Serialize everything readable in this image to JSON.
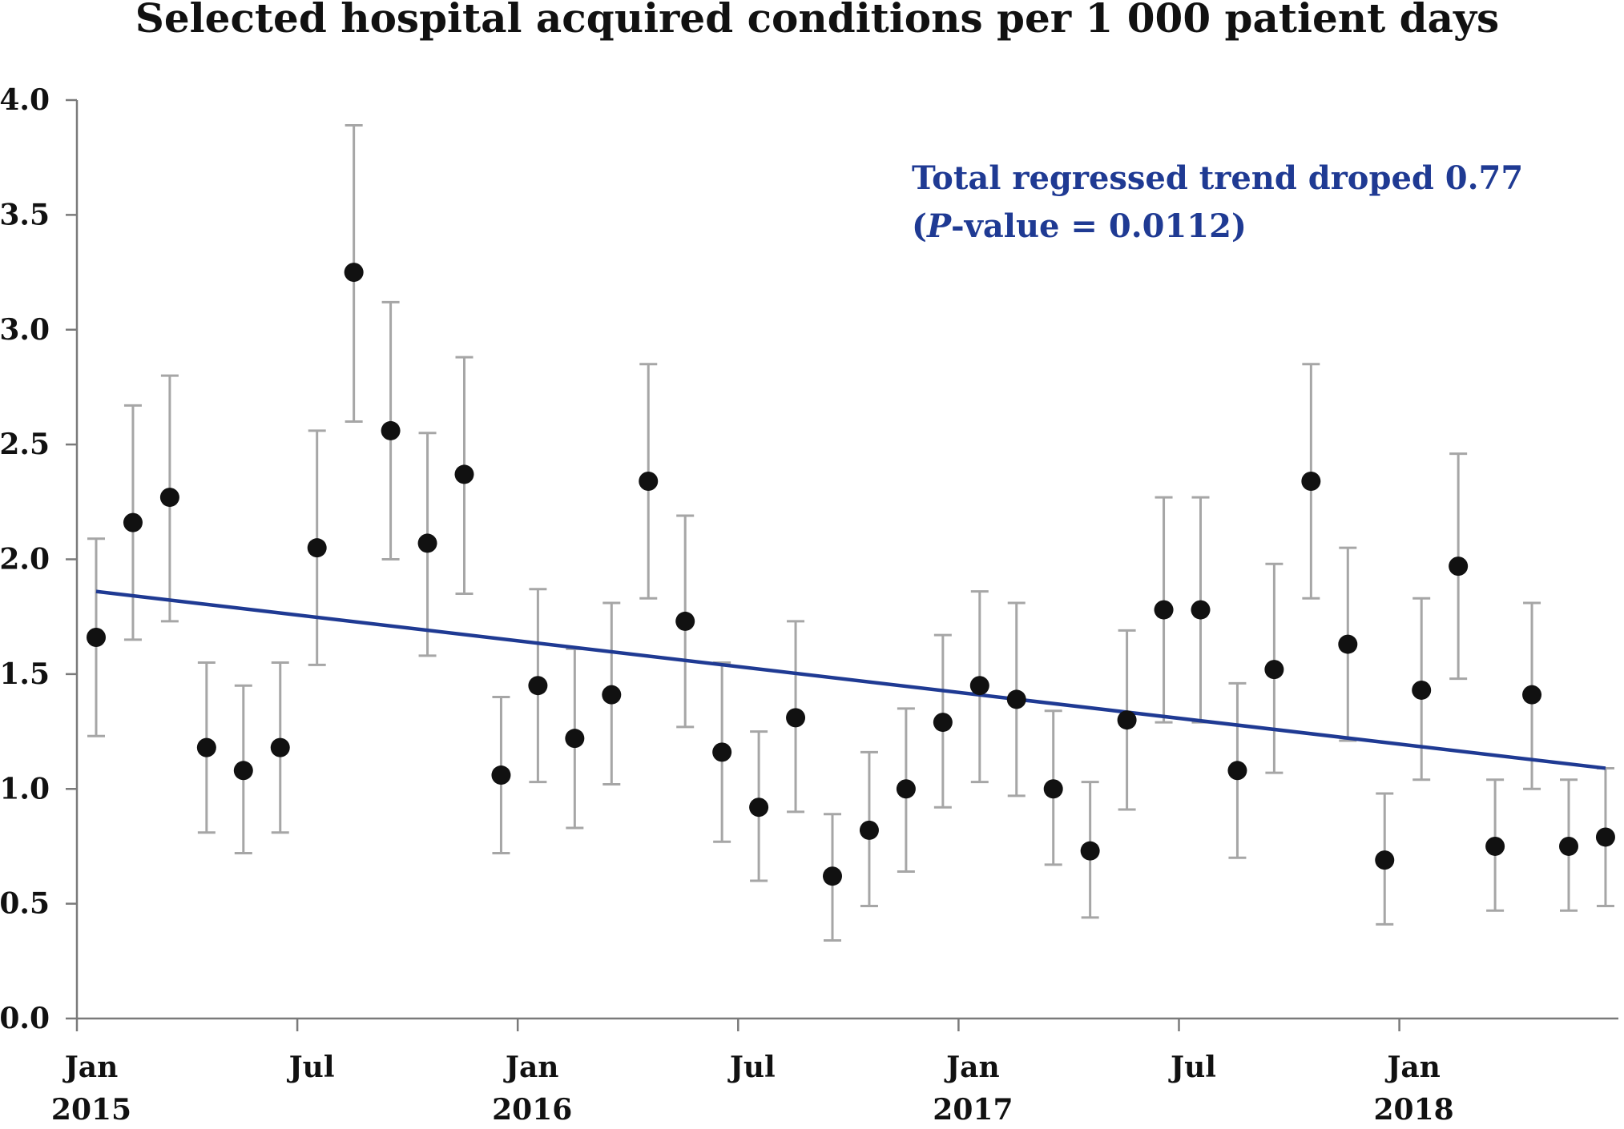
{
  "chart_data": {
    "type": "scatter",
    "title": "Selected hospital acquired conditions per 1 000 patient days",
    "xlabel": "",
    "ylabel": "",
    "ylim": [
      0.0,
      4.0
    ],
    "y_ticks": [
      "0.0",
      "0.5",
      "1.0",
      "1.5",
      "2.0",
      "2.5",
      "3.0",
      "3.5",
      "4.0"
    ],
    "x_ticks": [
      {
        "date": "2015-01",
        "month": "Jan",
        "year": "2015"
      },
      {
        "date": "2015-07",
        "month": "Jul",
        "year": ""
      },
      {
        "date": "2016-01",
        "month": "Jan",
        "year": "2016"
      },
      {
        "date": "2016-07",
        "month": "Jul",
        "year": ""
      },
      {
        "date": "2017-01",
        "month": "Jan",
        "year": "2017"
      },
      {
        "date": "2017-07",
        "month": "Jul",
        "year": ""
      },
      {
        "date": "2018-01",
        "month": "Jan",
        "year": "2018"
      }
    ],
    "x": [
      "2015-01",
      "2015-02",
      "2015-03",
      "2015-04",
      "2015-05",
      "2015-06",
      "2015-07",
      "2015-08",
      "2015-09",
      "2015-10",
      "2015-11",
      "2015-12",
      "2016-01",
      "2016-02",
      "2016-03",
      "2016-04",
      "2016-05",
      "2016-06",
      "2016-07",
      "2016-08",
      "2016-09",
      "2016-10",
      "2016-11",
      "2016-12",
      "2017-01",
      "2017-02",
      "2017-03",
      "2017-04",
      "2017-05",
      "2017-06",
      "2017-07",
      "2017-08",
      "2017-09",
      "2017-10",
      "2017-11",
      "2017-12",
      "2018-01",
      "2018-02",
      "2018-03",
      "2018-04",
      "2018-05",
      "2018-06"
    ],
    "values": [
      1.66,
      2.16,
      2.27,
      1.18,
      1.08,
      1.18,
      2.05,
      3.25,
      2.56,
      2.07,
      2.37,
      1.06,
      1.45,
      1.22,
      1.41,
      2.34,
      1.73,
      1.16,
      0.92,
      1.31,
      0.62,
      0.82,
      1.0,
      1.29,
      1.45,
      1.39,
      1.0,
      0.73,
      1.3,
      1.78,
      1.78,
      1.08,
      1.52,
      2.34,
      1.63,
      0.69,
      1.43,
      1.97,
      0.75,
      1.41,
      0.75,
      0.79
    ],
    "error_lower": [
      1.23,
      1.65,
      1.73,
      0.81,
      0.72,
      0.81,
      1.54,
      2.6,
      2.0,
      1.58,
      1.85,
      0.72,
      1.03,
      0.83,
      1.02,
      1.83,
      1.27,
      0.77,
      0.6,
      0.9,
      0.34,
      0.49,
      0.64,
      0.92,
      1.03,
      0.97,
      0.67,
      0.44,
      0.91,
      1.29,
      1.29,
      0.7,
      1.07,
      1.83,
      1.21,
      0.41,
      1.04,
      1.48,
      0.47,
      1.0,
      0.47,
      0.49
    ],
    "error_upper": [
      2.09,
      2.67,
      2.8,
      1.55,
      1.45,
      1.55,
      2.56,
      3.89,
      3.12,
      2.55,
      2.88,
      1.4,
      1.87,
      1.61,
      1.81,
      2.85,
      2.19,
      1.55,
      1.25,
      1.73,
      0.89,
      1.16,
      1.35,
      1.67,
      1.86,
      1.81,
      1.34,
      1.03,
      1.69,
      2.27,
      2.27,
      1.46,
      1.98,
      2.85,
      2.05,
      0.98,
      1.83,
      2.46,
      1.04,
      1.81,
      1.04,
      1.09
    ],
    "trend_line": {
      "x": [
        "2015-01",
        "2018-06"
      ],
      "y": [
        1.86,
        1.09
      ]
    },
    "annotation": {
      "line1": "Total regressed trend droped 0.77",
      "line2_open": "(",
      "line2_italic": "P",
      "line2_rest": "-value = 0.0112)"
    },
    "grid": false,
    "legend": "none",
    "colors": {
      "points": "#111111",
      "error_bars": "#a6a6a6",
      "trend": "#1f3a93",
      "axis": "#7a7a7a",
      "annotation": "#1f3a93"
    }
  }
}
